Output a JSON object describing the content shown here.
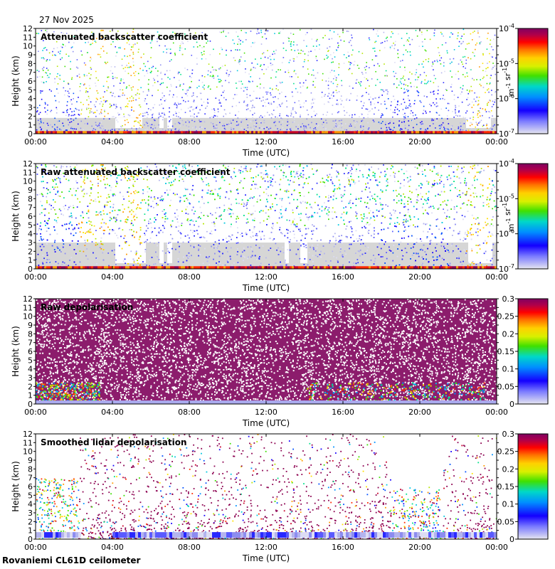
{
  "header": {
    "date": "27 Nov 2025"
  },
  "footer": {
    "site": "Rovaniemi CL61D ceilometer"
  },
  "chart_data": [
    {
      "type": "heatmap",
      "title": "Attenuated backscatter coefficient",
      "xlabel": "Time (UTC)",
      "ylabel": "Height (km)",
      "x_ticks": [
        "00:00",
        "04:00",
        "08:00",
        "12:00",
        "16:00",
        "20:00",
        "00:00"
      ],
      "y_ticks": [
        "0",
        "1",
        "2",
        "3",
        "4",
        "5",
        "6",
        "7",
        "8",
        "9",
        "10",
        "11",
        "12"
      ],
      "ylim": [
        0,
        12
      ],
      "colorbar": {
        "scale": "log",
        "range": [
          1e-07,
          0.0001
        ],
        "ticks": [
          "10-7",
          "10-6",
          "10-5",
          "10-4"
        ],
        "unit": "m-1 sr-1"
      }
    },
    {
      "type": "heatmap",
      "title": "Raw attenuated backscatter coefficient",
      "xlabel": "Time (UTC)",
      "ylabel": "Height (km)",
      "x_ticks": [
        "00:00",
        "04:00",
        "08:00",
        "12:00",
        "16:00",
        "20:00",
        "00:00"
      ],
      "y_ticks": [
        "0",
        "1",
        "2",
        "3",
        "4",
        "5",
        "6",
        "7",
        "8",
        "9",
        "10",
        "11",
        "12"
      ],
      "ylim": [
        0,
        12
      ],
      "colorbar": {
        "scale": "log",
        "range": [
          1e-07,
          0.0001
        ],
        "ticks": [
          "10-7",
          "10-6",
          "10-5",
          "10-4"
        ],
        "unit": "m-1 sr-1"
      }
    },
    {
      "type": "heatmap",
      "title": "Raw depolarisation",
      "xlabel": "Time (UTC)",
      "ylabel": "Height (km)",
      "x_ticks": [
        "00:00",
        "04:00",
        "08:00",
        "12:00",
        "16:00",
        "20:00",
        "00:00"
      ],
      "y_ticks": [
        "0",
        "1",
        "2",
        "3",
        "4",
        "5",
        "6",
        "7",
        "8",
        "9",
        "10",
        "11",
        "12"
      ],
      "ylim": [
        0,
        12
      ],
      "colorbar": {
        "scale": "linear",
        "range": [
          0,
          0.3
        ],
        "ticks": [
          "0",
          "0.05",
          "0.1",
          "0.15",
          "0.2",
          "0.25",
          "0.3"
        ],
        "unit": ""
      }
    },
    {
      "type": "heatmap",
      "title": "Smoothed lidar depolarisation",
      "xlabel": "Time (UTC)",
      "ylabel": "Height (km)",
      "x_ticks": [
        "00:00",
        "04:00",
        "08:00",
        "12:00",
        "16:00",
        "20:00",
        "00:00"
      ],
      "y_ticks": [
        "0",
        "1",
        "2",
        "3",
        "4",
        "5",
        "6",
        "7",
        "8",
        "9",
        "10",
        "11",
        "12"
      ],
      "ylim": [
        0,
        12
      ],
      "colorbar": {
        "scale": "linear",
        "range": [
          0,
          0.3
        ],
        "ticks": [
          "0",
          "0.05",
          "0.1",
          "0.15",
          "0.2",
          "0.25",
          "0.3"
        ],
        "unit": ""
      }
    }
  ]
}
